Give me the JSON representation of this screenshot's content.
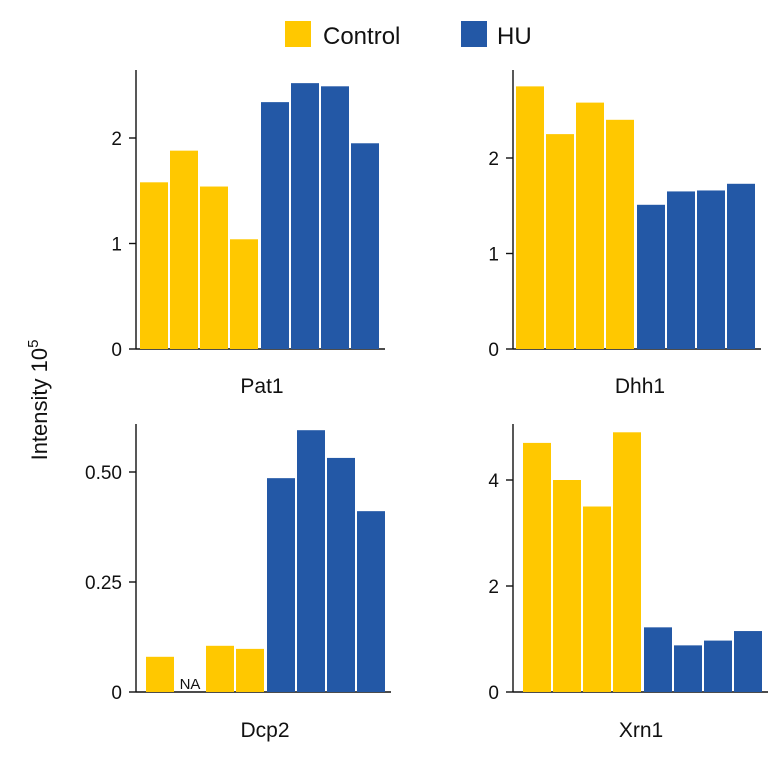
{
  "legend": {
    "items": [
      {
        "label": "Control",
        "color": "#FFC800"
      },
      {
        "label": "HU",
        "color": "#2358A6"
      }
    ]
  },
  "ylabel": "Intensity 10",
  "ylabel_exponent": "5",
  "chart_data": [
    {
      "type": "bar",
      "title": "Pat1",
      "ylim": [
        0,
        2.6
      ],
      "yticks": [
        0,
        1,
        2
      ],
      "ytick_labels": [
        "0",
        "1",
        "2"
      ],
      "series": [
        {
          "name": "Control",
          "color": "#FFC800",
          "values": [
            1.58,
            1.88,
            1.54,
            1.04
          ]
        },
        {
          "name": "HU",
          "color": "#2358A6",
          "values": [
            2.34,
            2.52,
            2.49,
            1.95
          ]
        }
      ]
    },
    {
      "type": "bar",
      "title": "Dhh1",
      "ylim": [
        0,
        2.9
      ],
      "yticks": [
        0,
        1,
        2
      ],
      "ytick_labels": [
        "0",
        "1",
        "2"
      ],
      "series": [
        {
          "name": "Control",
          "color": "#FFC800",
          "values": [
            2.75,
            2.25,
            2.58,
            2.4
          ]
        },
        {
          "name": "HU",
          "color": "#2358A6",
          "values": [
            1.51,
            1.65,
            1.66,
            1.73
          ]
        }
      ]
    },
    {
      "type": "bar",
      "title": "Dcp2",
      "ylim": [
        0,
        0.62
      ],
      "yticks": [
        0,
        0.25,
        0.5
      ],
      "ytick_labels": [
        "0",
        "0.25",
        "0.50"
      ],
      "annotations": [
        {
          "index": 1,
          "text": "NA"
        }
      ],
      "series": [
        {
          "name": "Control",
          "color": "#FFC800",
          "values": [
            0.08,
            null,
            0.105,
            0.098
          ]
        },
        {
          "name": "HU",
          "color": "#2358A6",
          "values": [
            0.486,
            0.595,
            0.532,
            0.411
          ]
        }
      ]
    },
    {
      "type": "bar",
      "title": "Xrn1",
      "ylim": [
        0,
        5
      ],
      "yticks": [
        0,
        2,
        4
      ],
      "ytick_labels": [
        "0",
        "2",
        "4"
      ],
      "series": [
        {
          "name": "Control",
          "color": "#FFC800",
          "values": [
            4.7,
            4.0,
            3.5,
            4.9
          ]
        },
        {
          "name": "HU",
          "color": "#2358A6",
          "values": [
            1.22,
            0.88,
            0.97,
            1.15
          ]
        }
      ]
    }
  ]
}
